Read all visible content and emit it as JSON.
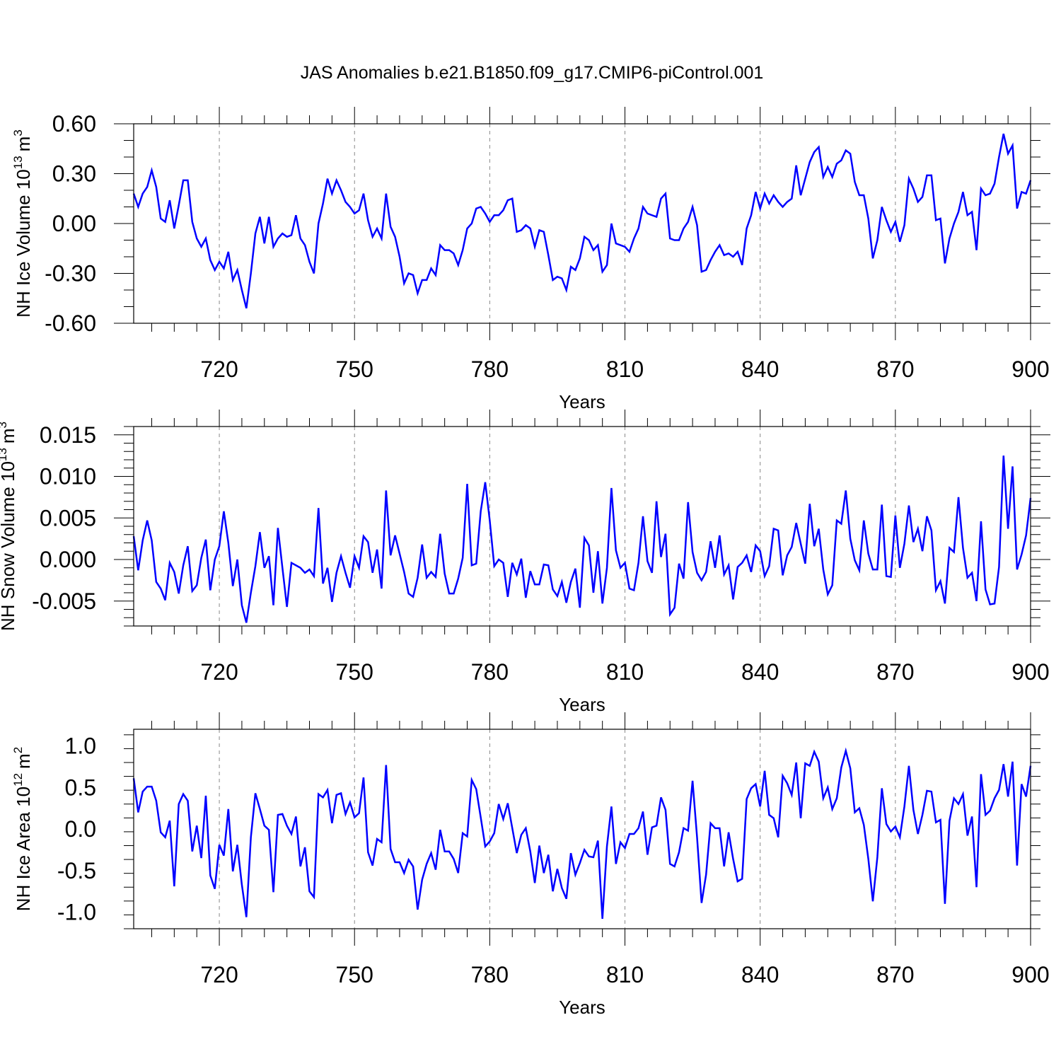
{
  "figure": {
    "title": "JAS Anomalies b.e21.B1850.f09_g17.CMIP6-piControl.001",
    "line_color": "#0000ff",
    "grid_color": "#888888"
  },
  "chart_data": [
    {
      "type": "line",
      "title": "",
      "xlabel": "Years",
      "ylabel_main": "NH Ice Volume 10",
      "ylabel_sup": "13",
      "ylabel_unit": "m",
      "ylabel_unit_sup": "3",
      "xlim": [
        701,
        900
      ],
      "ylim": [
        -0.6,
        0.6
      ],
      "xticks": [
        720,
        750,
        780,
        810,
        840,
        870,
        900
      ],
      "xtick_labels": [
        "720",
        "750",
        "780",
        "810",
        "840",
        "870",
        "900"
      ],
      "yticks": [
        -0.6,
        -0.3,
        0.0,
        0.3,
        0.6
      ],
      "ytick_labels": [
        "-0.60",
        "-0.30",
        "0.00",
        "0.30",
        "0.60"
      ],
      "grid": "vertical dashed at major x ticks",
      "series": [
        {
          "name": "NH Ice Volume",
          "x_start": 701,
          "values": [
            0.18,
            0.1,
            0.18,
            0.22,
            0.32,
            0.22,
            0.03,
            0.01,
            0.14,
            -0.03,
            0.11,
            0.26,
            0.26,
            0.01,
            -0.09,
            -0.14,
            -0.09,
            -0.22,
            -0.28,
            -0.23,
            -0.27,
            -0.17,
            -0.34,
            -0.28,
            -0.4,
            -0.51,
            -0.3,
            -0.06,
            0.04,
            -0.12,
            0.04,
            -0.14,
            -0.09,
            -0.06,
            -0.08,
            -0.07,
            0.05,
            -0.09,
            -0.13,
            -0.23,
            -0.3,
            0.0,
            0.12,
            0.27,
            0.18,
            0.26,
            0.2,
            0.13,
            0.1,
            0.06,
            0.08,
            0.18,
            0.02,
            -0.08,
            -0.03,
            -0.09,
            0.18,
            -0.02,
            -0.08,
            -0.2,
            -0.36,
            -0.3,
            -0.31,
            -0.42,
            -0.34,
            -0.34,
            -0.27,
            -0.31,
            -0.13,
            -0.16,
            -0.16,
            -0.18,
            -0.25,
            -0.16,
            -0.03,
            0.0,
            0.09,
            0.1,
            0.06,
            0.01,
            0.05,
            0.05,
            0.08,
            0.14,
            0.15,
            -0.05,
            -0.04,
            -0.01,
            -0.03,
            -0.14,
            -0.04,
            -0.05,
            -0.19,
            -0.34,
            -0.32,
            -0.33,
            -0.4,
            -0.26,
            -0.28,
            -0.21,
            -0.08,
            -0.1,
            -0.16,
            -0.13,
            -0.29,
            -0.25,
            0.0,
            -0.12,
            -0.13,
            -0.14,
            -0.17,
            -0.09,
            -0.03,
            0.1,
            0.06,
            0.05,
            0.04,
            0.15,
            0.18,
            -0.09,
            -0.1,
            -0.1,
            -0.03,
            0.01,
            0.1,
            -0.01,
            -0.29,
            -0.28,
            -0.22,
            -0.17,
            -0.13,
            -0.19,
            -0.18,
            -0.2,
            -0.17,
            -0.25,
            -0.03,
            0.05,
            0.19,
            0.09,
            0.18,
            0.12,
            0.17,
            0.13,
            0.1,
            0.13,
            0.15,
            0.35,
            0.17,
            0.27,
            0.37,
            0.43,
            0.46,
            0.28,
            0.34,
            0.28,
            0.36,
            0.38,
            0.44,
            0.42,
            0.25,
            0.17,
            0.17,
            0.03,
            -0.21,
            -0.1,
            0.1,
            0.02,
            -0.05,
            0.01,
            -0.11,
            -0.01,
            0.27,
            0.21,
            0.13,
            0.16,
            0.29,
            0.29,
            0.02,
            0.03,
            -0.24,
            -0.09,
            0.0,
            0.07,
            0.19,
            0.05,
            0.07,
            -0.16,
            0.21,
            0.17,
            0.18,
            0.24,
            0.4,
            0.54,
            0.42,
            0.47,
            0.09,
            0.19,
            0.18,
            0.26
          ]
        }
      ]
    },
    {
      "type": "line",
      "title": "",
      "xlabel": "Years",
      "ylabel_main": "NH Snow Volume 10",
      "ylabel_sup": "13",
      "ylabel_unit": "m",
      "ylabel_unit_sup": "3",
      "xlim": [
        701,
        900
      ],
      "ylim": [
        -0.008,
        0.016
      ],
      "xticks": [
        720,
        750,
        780,
        810,
        840,
        870,
        900
      ],
      "xtick_labels": [
        "720",
        "750",
        "780",
        "810",
        "840",
        "870",
        "900"
      ],
      "yticks": [
        -0.005,
        0.0,
        0.005,
        0.01,
        0.015
      ],
      "ytick_labels": [
        "-0.005",
        "0.000",
        "0.005",
        "0.010",
        "0.015"
      ],
      "grid": "vertical dashed at major x ticks",
      "series": [
        {
          "name": "NH Snow Volume",
          "x_start": 701,
          "values": [
            0.0028,
            -0.0013,
            0.0023,
            0.0047,
            0.0023,
            -0.0027,
            -0.0035,
            -0.0049,
            -0.0004,
            -0.0015,
            -0.0041,
            -0.0007,
            0.0016,
            -0.0038,
            -0.0031,
            0.0002,
            0.0024,
            -0.0037,
            0.0,
            0.0016,
            0.0058,
            0.002,
            -0.0032,
            0.0,
            -0.0055,
            -0.0076,
            -0.004,
            -0.0008,
            0.0033,
            -0.001,
            0.0004,
            -0.0055,
            0.0038,
            -0.001,
            -0.0057,
            -0.0004,
            -0.0007,
            -0.001,
            -0.0016,
            -0.0012,
            -0.002,
            0.0062,
            -0.0029,
            -0.001,
            -0.0051,
            -0.0016,
            0.0004,
            -0.0016,
            -0.0034,
            0.0004,
            -0.001,
            0.0028,
            0.0021,
            -0.0016,
            0.0012,
            -0.0035,
            0.0083,
            0.0005,
            0.0029,
            0.0007,
            -0.0015,
            -0.0041,
            -0.0045,
            -0.0022,
            0.0018,
            -0.0022,
            -0.0015,
            -0.0021,
            0.0031,
            -0.0017,
            -0.0041,
            -0.0041,
            -0.0023,
            0.0002,
            0.0091,
            -0.0007,
            -0.0005,
            0.0058,
            0.0093,
            0.0047,
            -0.0008,
            0.0,
            -0.0004,
            -0.0045,
            -0.0004,
            -0.0018,
            0.0001,
            -0.0046,
            -0.0014,
            -0.003,
            -0.003,
            -0.0006,
            -0.0007,
            -0.0036,
            -0.0044,
            -0.0027,
            -0.0052,
            -0.0027,
            -0.0011,
            -0.0058,
            0.0026,
            0.0017,
            -0.004,
            0.001,
            -0.0053,
            -0.001,
            0.0086,
            0.0011,
            -0.001,
            -0.0004,
            -0.0035,
            -0.0037,
            -0.0004,
            0.0052,
            -0.0002,
            -0.0016,
            0.007,
            0.0003,
            0.0031,
            -0.0066,
            -0.0058,
            -0.0005,
            -0.0023,
            0.0069,
            0.0009,
            -0.0016,
            -0.0025,
            -0.0015,
            0.0022,
            -0.001,
            0.0029,
            -0.0018,
            -0.0007,
            -0.0048,
            -0.0009,
            -0.0004,
            0.0005,
            -0.0015,
            0.0017,
            0.001,
            -0.002,
            -0.0008,
            0.0037,
            0.0035,
            -0.0019,
            0.0005,
            0.0015,
            0.0044,
            0.0019,
            -0.0005,
            0.0067,
            0.0016,
            0.0037,
            -0.0012,
            -0.0042,
            -0.0031,
            0.0047,
            0.0043,
            0.0083,
            0.0025,
            -0.0001,
            -0.0013,
            0.0047,
            0.0007,
            -0.0012,
            -0.0012,
            0.0066,
            -0.002,
            -0.0021,
            0.0053,
            -0.001,
            0.0019,
            0.0065,
            0.0021,
            0.0037,
            0.001,
            0.0052,
            0.0035,
            -0.0037,
            -0.0026,
            -0.0053,
            0.0014,
            0.0009,
            0.0075,
            0.0014,
            -0.0022,
            -0.0016,
            -0.005,
            0.0046,
            -0.0036,
            -0.0054,
            -0.0053,
            -0.0009,
            0.0125,
            0.0037,
            0.0112,
            -0.0012,
            0.0006,
            0.0029,
            0.0074
          ]
        }
      ]
    },
    {
      "type": "line",
      "title": "",
      "xlabel": "Years",
      "ylabel_main": "NH Ice Area 10",
      "ylabel_sup": "12",
      "ylabel_unit": "m",
      "ylabel_unit_sup": "2",
      "xlim": [
        701,
        900
      ],
      "ylim": [
        -1.2,
        1.2
      ],
      "xticks": [
        720,
        750,
        780,
        810,
        840,
        870,
        900
      ],
      "xtick_labels": [
        "720",
        "750",
        "780",
        "810",
        "840",
        "870",
        "900"
      ],
      "yticks": [
        -1.0,
        -0.5,
        0.0,
        0.5,
        1.0
      ],
      "ytick_labels": [
        "-1.0",
        "-0.5",
        "0.0",
        "0.5",
        "1.0"
      ],
      "grid": "vertical dashed at major x ticks",
      "series": [
        {
          "name": "NH Ice Area",
          "x_start": 701,
          "values": [
            0.61,
            0.2,
            0.45,
            0.51,
            0.51,
            0.34,
            -0.04,
            -0.1,
            0.1,
            -0.69,
            0.3,
            0.42,
            0.34,
            -0.27,
            0.04,
            -0.35,
            0.4,
            -0.56,
            -0.72,
            -0.19,
            -0.32,
            0.24,
            -0.51,
            -0.19,
            -0.67,
            -1.06,
            -0.1,
            0.43,
            0.24,
            0.04,
            -0.01,
            -0.76,
            0.17,
            0.18,
            0.04,
            -0.06,
            0.15,
            -0.45,
            -0.22,
            -0.75,
            -0.82,
            0.42,
            0.38,
            0.47,
            0.07,
            0.41,
            0.43,
            0.18,
            0.32,
            0.14,
            0.19,
            0.62,
            -0.28,
            -0.44,
            -0.12,
            -0.16,
            0.77,
            -0.24,
            -0.4,
            -0.4,
            -0.53,
            -0.37,
            -0.45,
            -0.97,
            -0.61,
            -0.42,
            -0.29,
            -0.49,
            -0.01,
            -0.27,
            -0.27,
            -0.36,
            -0.53,
            -0.05,
            -0.09,
            0.59,
            0.48,
            0.14,
            -0.21,
            -0.15,
            -0.05,
            0.3,
            0.12,
            0.31,
            0.01,
            -0.29,
            -0.07,
            0.01,
            -0.27,
            -0.65,
            -0.2,
            -0.53,
            -0.31,
            -0.75,
            -0.48,
            -0.71,
            -0.84,
            -0.29,
            -0.55,
            -0.41,
            -0.25,
            -0.33,
            -0.34,
            -0.14,
            -1.08,
            -0.21,
            0.27,
            -0.42,
            -0.16,
            -0.23,
            -0.06,
            -0.06,
            0.01,
            0.21,
            -0.31,
            0.02,
            0.04,
            0.38,
            0.23,
            -0.42,
            -0.45,
            -0.28,
            0.01,
            -0.02,
            0.58,
            -0.1,
            -0.89,
            -0.55,
            0.07,
            0.01,
            0.01,
            -0.45,
            -0.04,
            -0.36,
            -0.63,
            -0.6,
            0.36,
            0.49,
            0.54,
            0.27,
            0.7,
            0.17,
            0.13,
            -0.1,
            0.64,
            0.55,
            0.41,
            0.8,
            0.13,
            0.79,
            0.76,
            0.93,
            0.81,
            0.37,
            0.5,
            0.24,
            0.37,
            0.74,
            0.94,
            0.73,
            0.2,
            0.25,
            0.05,
            -0.36,
            -0.87,
            -0.34,
            0.49,
            0.06,
            -0.03,
            0.03,
            -0.1,
            0.27,
            0.76,
            0.23,
            -0.06,
            0.17,
            0.46,
            0.45,
            0.08,
            0.11,
            -0.9,
            0.1,
            0.37,
            0.3,
            0.42,
            -0.08,
            0.15,
            -0.7,
            0.66,
            0.17,
            0.22,
            0.37,
            0.47,
            0.78,
            0.39,
            0.81,
            -0.44,
            0.54,
            0.39,
            0.76
          ]
        }
      ]
    }
  ]
}
